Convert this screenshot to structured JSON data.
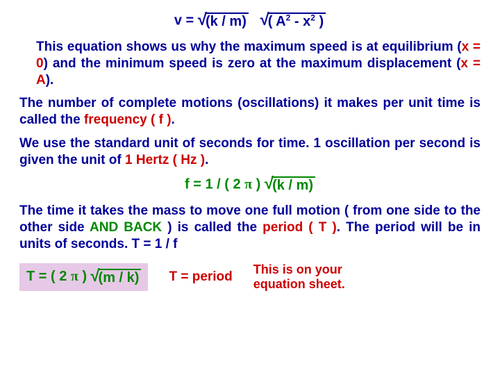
{
  "eq1": {
    "lhs": "v  =",
    "arg1": "(k / m)",
    "arg2_a": "( A",
    "arg2_b": "   -   x",
    "arg2_c": " )"
  },
  "p1": {
    "a": "This equation shows us why the maximum speed is at equilibrium (",
    "x0": "x = 0",
    "b": ") and the minimum speed is zero at the maximum displacement (",
    "xA": "x = A",
    "c": ")."
  },
  "p2": {
    "a": "The number of complete motions (oscillations) it makes per unit time is called the ",
    "freq": "frequency ( f )",
    "b": "."
  },
  "p3": {
    "a": "We use the standard unit of seconds for time.  1 oscillation per second is given the unit of ",
    "hz": "1 Hertz ( Hz )",
    "b": "."
  },
  "eq2": {
    "lhs": "f   =   1 / ( 2 ",
    "rhs": " )",
    "arg": "(k / m)"
  },
  "p4": {
    "a": "The time it takes the mass to move one full motion ( from one side to the other side ",
    "and": "AND BACK",
    "b": " ) is called the ",
    "per": "period ( T )",
    "c": ".  The period will be in units of seconds.    T =  1 / f"
  },
  "eq3": {
    "lhs": "T   = ( 2 ",
    "mid": " )",
    "arg": "(m / k)"
  },
  "tlabel": "T = period",
  "note1": "This is on your",
  "note2": "equation sheet."
}
